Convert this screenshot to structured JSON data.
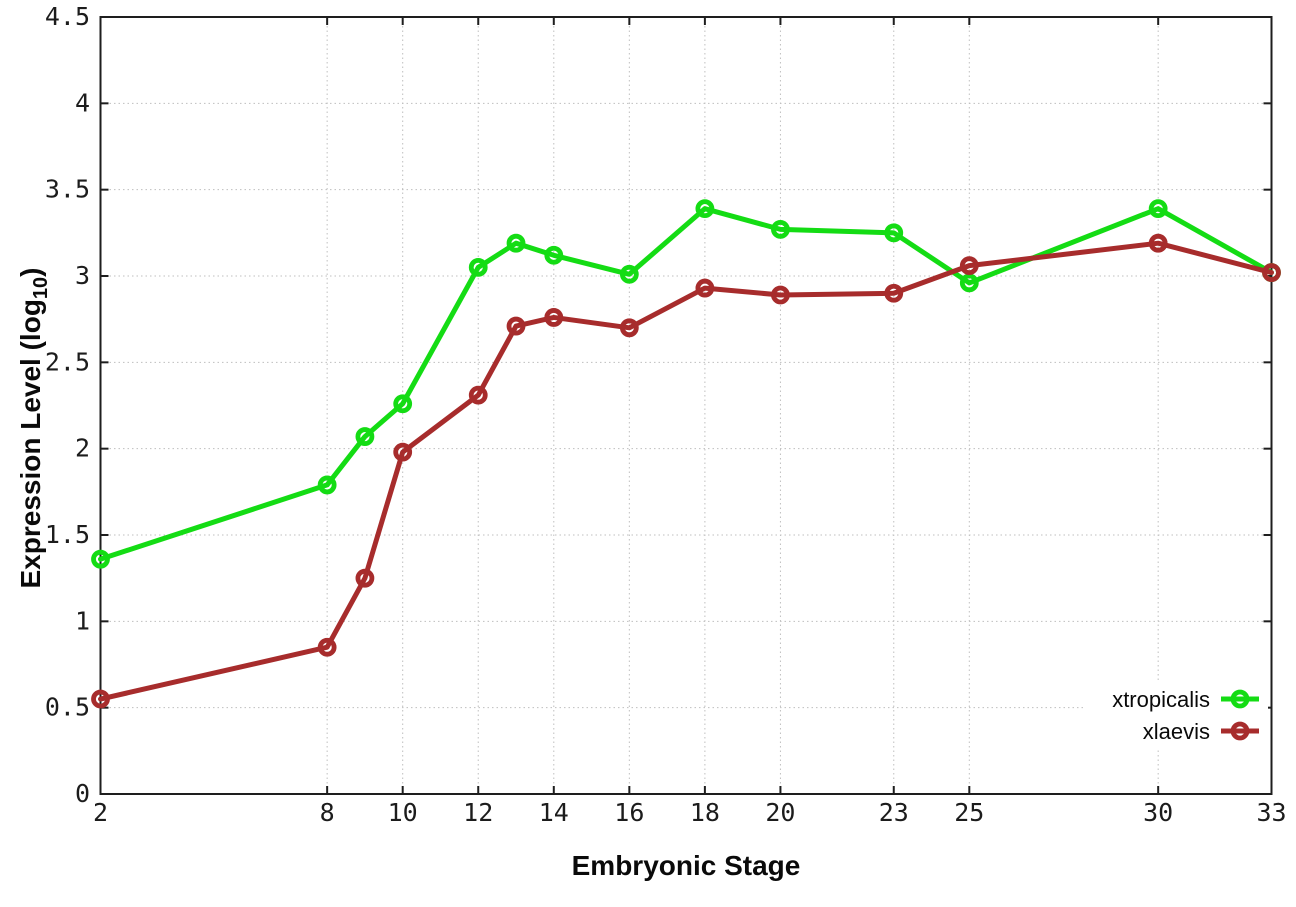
{
  "figure": {
    "background": "#ffffff",
    "border_color": "#1e1e1e",
    "grid_color": "#bfbfbf",
    "tick_color": "#1e1e1e",
    "text_color": "#1c1c1c"
  },
  "chart_data": {
    "type": "line",
    "title": "",
    "xlabel": "Embryonic Stage",
    "ylabel": "Expression Level (log10)",
    "ylabel_parts": {
      "prefix": "Expression Level (log",
      "subscript": "10",
      "suffix": ")"
    },
    "xlim": [
      2,
      33
    ],
    "ylim": [
      0,
      4.5
    ],
    "grid": true,
    "legend_position": "bottom-right",
    "x": [
      2,
      8,
      9,
      10,
      12,
      13,
      14,
      16,
      18,
      20,
      23,
      25,
      30,
      33
    ],
    "xticks": [
      2,
      8,
      10,
      12,
      14,
      16,
      18,
      20,
      23,
      25,
      30,
      33
    ],
    "xtick_labels": [
      "2",
      "8",
      "10",
      "12",
      "14",
      "16",
      "18",
      "20",
      "23",
      "25",
      "30",
      "33"
    ],
    "yticks": [
      0,
      0.5,
      1,
      1.5,
      2,
      2.5,
      3,
      3.5,
      4,
      4.5
    ],
    "ytick_labels": [
      "0",
      "0.5",
      "1",
      "1.5",
      "2",
      "2.5",
      "3",
      "3.5",
      "4",
      "4.5"
    ],
    "marker": "open-circle",
    "marker_radius": 7,
    "marker_stroke": 4.8,
    "line_width": 5,
    "series": [
      {
        "name": "xtropicalis",
        "color": "#14DC14",
        "values": [
          1.36,
          1.79,
          2.07,
          2.26,
          3.05,
          3.19,
          3.12,
          3.01,
          3.39,
          3.27,
          3.25,
          2.96,
          3.39,
          3.02
        ]
      },
      {
        "name": "xlaevis",
        "color": "#A72C2C",
        "values": [
          0.55,
          0.85,
          1.25,
          1.98,
          2.31,
          2.71,
          2.76,
          2.7,
          2.93,
          2.89,
          2.9,
          3.06,
          3.19,
          3.02
        ]
      }
    ]
  }
}
